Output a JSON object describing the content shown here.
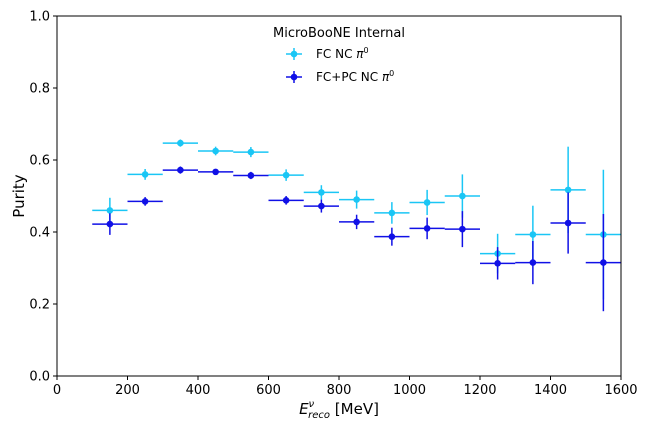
{
  "chart_data": {
    "type": "scatter",
    "legend_title": "MicroBooNE Internal",
    "legend_placement": "top-center",
    "xlabel_main": "E",
    "xlabel_sup": "ν",
    "xlabel_sub": "reco",
    "xlabel_unit": " [MeV]",
    "ylabel": "Purity",
    "xlim": [
      0,
      1600
    ],
    "ylim": [
      0,
      1
    ],
    "xticks": [
      "0",
      "200",
      "400",
      "600",
      "800",
      "1000",
      "1200",
      "1400",
      "1600"
    ],
    "yticks": [
      "0.0",
      "0.2",
      "0.4",
      "0.6",
      "0.8",
      "1.0"
    ],
    "grid": false,
    "series": [
      {
        "name_text": "FC NC ",
        "name_symbol": "π",
        "name_sup": "0",
        "color": "#1ac6f5",
        "points": [
          {
            "x": 150,
            "y": 0.46,
            "x_low": 100,
            "x_high": 200,
            "y_err": 0.035
          },
          {
            "x": 250,
            "y": 0.56,
            "x_low": 200,
            "x_high": 300,
            "y_err": 0.015
          },
          {
            "x": 350,
            "y": 0.647,
            "x_low": 300,
            "x_high": 400,
            "y_err": 0.01
          },
          {
            "x": 450,
            "y": 0.625,
            "x_low": 400,
            "x_high": 500,
            "y_err": 0.012
          },
          {
            "x": 550,
            "y": 0.622,
            "x_low": 500,
            "x_high": 600,
            "y_err": 0.014
          },
          {
            "x": 650,
            "y": 0.558,
            "x_low": 600,
            "x_high": 700,
            "y_err": 0.016
          },
          {
            "x": 750,
            "y": 0.51,
            "x_low": 700,
            "x_high": 800,
            "y_err": 0.02
          },
          {
            "x": 850,
            "y": 0.49,
            "x_low": 800,
            "x_high": 900,
            "y_err": 0.025
          },
          {
            "x": 950,
            "y": 0.453,
            "x_low": 900,
            "x_high": 1000,
            "y_err": 0.03
          },
          {
            "x": 1050,
            "y": 0.482,
            "x_low": 1000,
            "x_high": 1100,
            "y_err": 0.035
          },
          {
            "x": 1150,
            "y": 0.5,
            "x_low": 1100,
            "x_high": 1200,
            "y_err": 0.06
          },
          {
            "x": 1250,
            "y": 0.34,
            "x_low": 1200,
            "x_high": 1300,
            "y_err": 0.055
          },
          {
            "x": 1350,
            "y": 0.393,
            "x_low": 1300,
            "x_high": 1400,
            "y_err": 0.08
          },
          {
            "x": 1450,
            "y": 0.517,
            "x_low": 1400,
            "x_high": 1500,
            "y_err": 0.12
          },
          {
            "x": 1550,
            "y": 0.393,
            "x_low": 1500,
            "x_high": 1600,
            "y_err": 0.18
          }
        ]
      },
      {
        "name_text": "FC+PC NC ",
        "name_symbol": "π",
        "name_sup": "0",
        "color": "#1010e6",
        "points": [
          {
            "x": 150,
            "y": 0.422,
            "x_low": 100,
            "x_high": 200,
            "y_err": 0.03
          },
          {
            "x": 250,
            "y": 0.485,
            "x_low": 200,
            "x_high": 300,
            "y_err": 0.012
          },
          {
            "x": 350,
            "y": 0.572,
            "x_low": 300,
            "x_high": 400,
            "y_err": 0.01
          },
          {
            "x": 450,
            "y": 0.567,
            "x_low": 400,
            "x_high": 500,
            "y_err": 0.008
          },
          {
            "x": 550,
            "y": 0.557,
            "x_low": 500,
            "x_high": 600,
            "y_err": 0.01
          },
          {
            "x": 650,
            "y": 0.488,
            "x_low": 600,
            "x_high": 700,
            "y_err": 0.012
          },
          {
            "x": 750,
            "y": 0.472,
            "x_low": 700,
            "x_high": 800,
            "y_err": 0.018
          },
          {
            "x": 850,
            "y": 0.428,
            "x_low": 800,
            "x_high": 900,
            "y_err": 0.02
          },
          {
            "x": 950,
            "y": 0.387,
            "x_low": 900,
            "x_high": 1000,
            "y_err": 0.025
          },
          {
            "x": 1050,
            "y": 0.41,
            "x_low": 1000,
            "x_high": 1100,
            "y_err": 0.03
          },
          {
            "x": 1150,
            "y": 0.408,
            "x_low": 1100,
            "x_high": 1200,
            "y_err": 0.05
          },
          {
            "x": 1250,
            "y": 0.313,
            "x_low": 1200,
            "x_high": 1300,
            "y_err": 0.045
          },
          {
            "x": 1350,
            "y": 0.315,
            "x_low": 1300,
            "x_high": 1400,
            "y_err": 0.06
          },
          {
            "x": 1450,
            "y": 0.425,
            "x_low": 1400,
            "x_high": 1500,
            "y_err": 0.085
          },
          {
            "x": 1550,
            "y": 0.315,
            "x_low": 1500,
            "x_high": 1600,
            "y_err": 0.135
          }
        ]
      }
    ]
  }
}
